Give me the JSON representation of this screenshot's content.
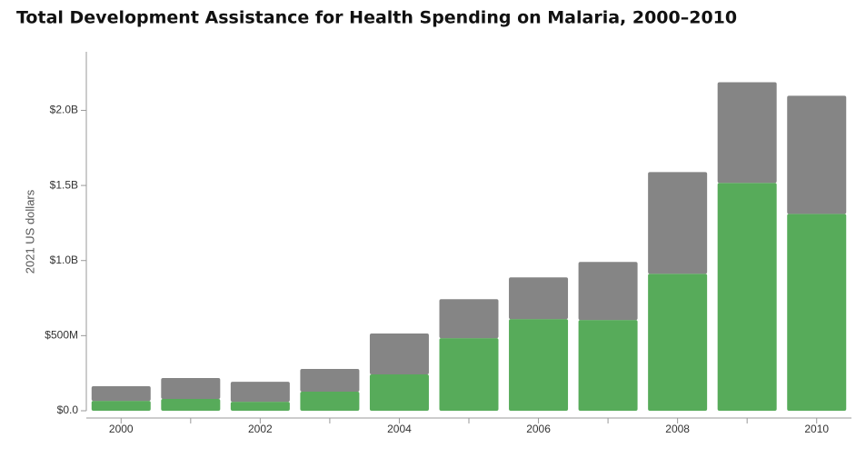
{
  "chart_data": {
    "type": "stacked-bar",
    "title": "Total Development Assistance for Health Spending on Malaria, 2000–2010",
    "y_label": "2021 US dollars",
    "categories": [
      "2000",
      null,
      "2002",
      null,
      "2004",
      null,
      "2006",
      null,
      "2008",
      null,
      "2010"
    ],
    "series": [
      {
        "color": "#57ab5a",
        "values": [
          66000000,
          79000000,
          60000000,
          127000000,
          242000000,
          483000000,
          610000000,
          604000000,
          912000000,
          1517000000,
          1311000000
        ]
      },
      {
        "color": "#858585",
        "values": [
          97000000,
          139000000,
          133000000,
          151000000,
          272000000,
          260000000,
          278000000,
          387000000,
          677000000,
          670000000,
          786000000
        ]
      }
    ],
    "ylim": [
      0,
      2390000000
    ],
    "yticks": [
      {
        "value": 0,
        "label": "$0.0"
      },
      {
        "value": 500000000,
        "label": "$500M"
      },
      {
        "value": 1000000000,
        "label": "$1.0B"
      },
      {
        "value": 1500000000,
        "label": "$1.5B"
      },
      {
        "value": 2000000000,
        "label": "$2.0B"
      }
    ],
    "grid": false
  }
}
